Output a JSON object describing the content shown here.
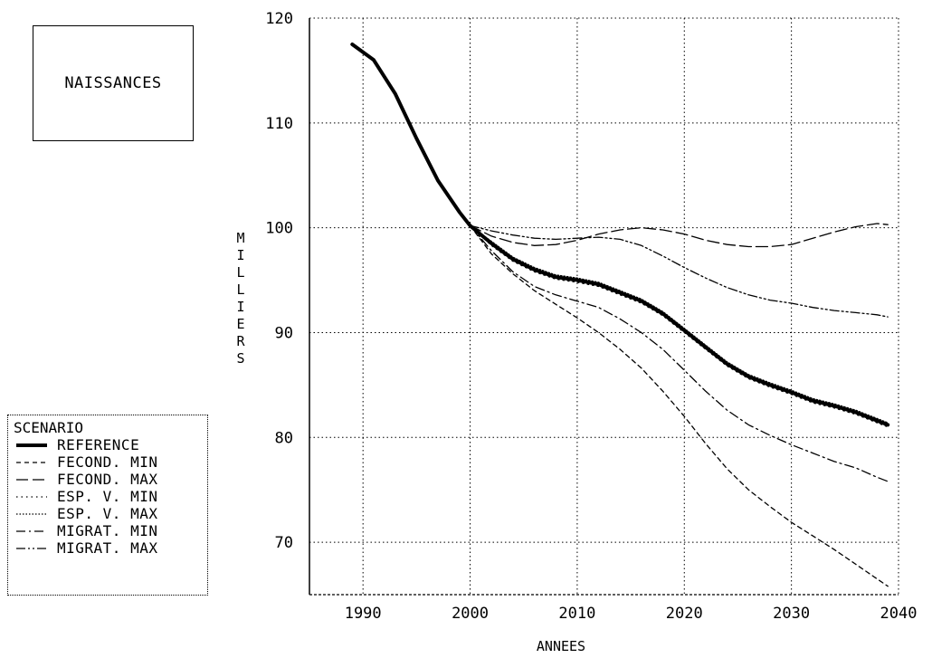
{
  "chart_data": {
    "type": "line",
    "title": "NAISSANCES",
    "xlabel": "ANNEES",
    "ylabel": "MILLIERS",
    "xlim": [
      1985,
      2040
    ],
    "ylim": [
      65,
      120
    ],
    "xticks": [
      1990,
      2000,
      2010,
      2020,
      2030,
      2040
    ],
    "yticks": [
      70,
      80,
      90,
      100,
      110,
      120
    ],
    "grid": true,
    "legend": {
      "title": "SCENARIO",
      "placement": "bottom-left"
    },
    "series": [
      {
        "name": "REFERENCE",
        "style": "solid-bold",
        "x": [
          1989,
          1991,
          1993,
          1995,
          1997,
          1999,
          2000,
          2002,
          2004,
          2006,
          2008,
          2010,
          2012,
          2014,
          2016,
          2018,
          2020,
          2022,
          2024,
          2026,
          2028,
          2030,
          2032,
          2034,
          2036,
          2038,
          2039
        ],
        "y": [
          117.5,
          116,
          112.8,
          108.5,
          104.5,
          101.5,
          100.2,
          98.5,
          97,
          96,
          95.3,
          95,
          94.6,
          93.8,
          93,
          91.8,
          90.2,
          88.6,
          87,
          85.8,
          85,
          84.3,
          83.5,
          83,
          82.4,
          81.6,
          81.2
        ]
      },
      {
        "name": "FECOND. MIN",
        "style": "dashed-short",
        "x": [
          2000,
          2002,
          2004,
          2006,
          2008,
          2010,
          2012,
          2014,
          2016,
          2018,
          2020,
          2022,
          2024,
          2026,
          2028,
          2030,
          2032,
          2034,
          2036,
          2038,
          2039
        ],
        "y": [
          100.2,
          97.5,
          95.6,
          94,
          92.7,
          91.4,
          90,
          88.4,
          86.6,
          84.4,
          82,
          79.4,
          77,
          75,
          73.4,
          71.9,
          70.6,
          69.3,
          67.9,
          66.5,
          65.8
        ]
      },
      {
        "name": "FECOND. MAX",
        "style": "dashed-long",
        "x": [
          2000,
          2002,
          2004,
          2006,
          2008,
          2010,
          2012,
          2014,
          2016,
          2018,
          2020,
          2022,
          2024,
          2026,
          2028,
          2030,
          2032,
          2034,
          2036,
          2038,
          2039
        ],
        "y": [
          100.2,
          99.2,
          98.6,
          98.3,
          98.4,
          98.8,
          99.4,
          99.8,
          100,
          99.8,
          99.4,
          98.8,
          98.4,
          98.2,
          98.2,
          98.4,
          99,
          99.6,
          100.1,
          100.4,
          100.3
        ]
      },
      {
        "name": "ESP. V. MIN",
        "style": "dotted-sparse",
        "x": [
          2000,
          2002,
          2004,
          2006,
          2008,
          2010,
          2012,
          2014,
          2016,
          2018,
          2020,
          2022,
          2024,
          2026,
          2028,
          2030,
          2032,
          2034,
          2036,
          2038,
          2039
        ],
        "y": [
          100.2,
          98.3,
          96.8,
          95.8,
          95.1,
          94.8,
          94.4,
          93.6,
          92.8,
          91.6,
          90,
          88.4,
          86.8,
          85.6,
          84.8,
          84.1,
          83.3,
          82.8,
          82.2,
          81.4,
          81
        ]
      },
      {
        "name": "ESP. V. MAX",
        "style": "dotted-dense",
        "x": [
          2000,
          2002,
          2004,
          2006,
          2008,
          2010,
          2012,
          2014,
          2016,
          2018,
          2020,
          2022,
          2024,
          2026,
          2028,
          2030,
          2032,
          2034,
          2036,
          2038,
          2039
        ],
        "y": [
          100.2,
          98.7,
          97.2,
          96.2,
          95.5,
          95.2,
          94.8,
          94,
          93.2,
          92,
          90.4,
          88.8,
          87.2,
          86,
          85.2,
          84.5,
          83.7,
          83.2,
          82.6,
          81.8,
          81.4
        ]
      },
      {
        "name": "MIGRAT. MIN",
        "style": "dash-dot",
        "x": [
          2000,
          2002,
          2004,
          2006,
          2008,
          2010,
          2012,
          2014,
          2016,
          2018,
          2020,
          2022,
          2024,
          2026,
          2028,
          2030,
          2032,
          2034,
          2036,
          2038,
          2039
        ],
        "y": [
          100.2,
          97.8,
          95.8,
          94.4,
          93.6,
          93,
          92.4,
          91.3,
          90,
          88.4,
          86.4,
          84.4,
          82.6,
          81.2,
          80.2,
          79.3,
          78.5,
          77.7,
          77.1,
          76.2,
          75.8
        ]
      },
      {
        "name": "MIGRAT. MAX",
        "style": "dash-dot-dot",
        "x": [
          2000,
          2002,
          2004,
          2006,
          2008,
          2010,
          2012,
          2014,
          2016,
          2018,
          2020,
          2022,
          2024,
          2026,
          2028,
          2030,
          2032,
          2034,
          2036,
          2038,
          2039
        ],
        "y": [
          100.2,
          99.7,
          99.3,
          99,
          98.9,
          99,
          99.1,
          98.9,
          98.3,
          97.3,
          96.2,
          95.2,
          94.3,
          93.6,
          93.1,
          92.8,
          92.4,
          92.1,
          91.9,
          91.7,
          91.5
        ]
      }
    ]
  }
}
